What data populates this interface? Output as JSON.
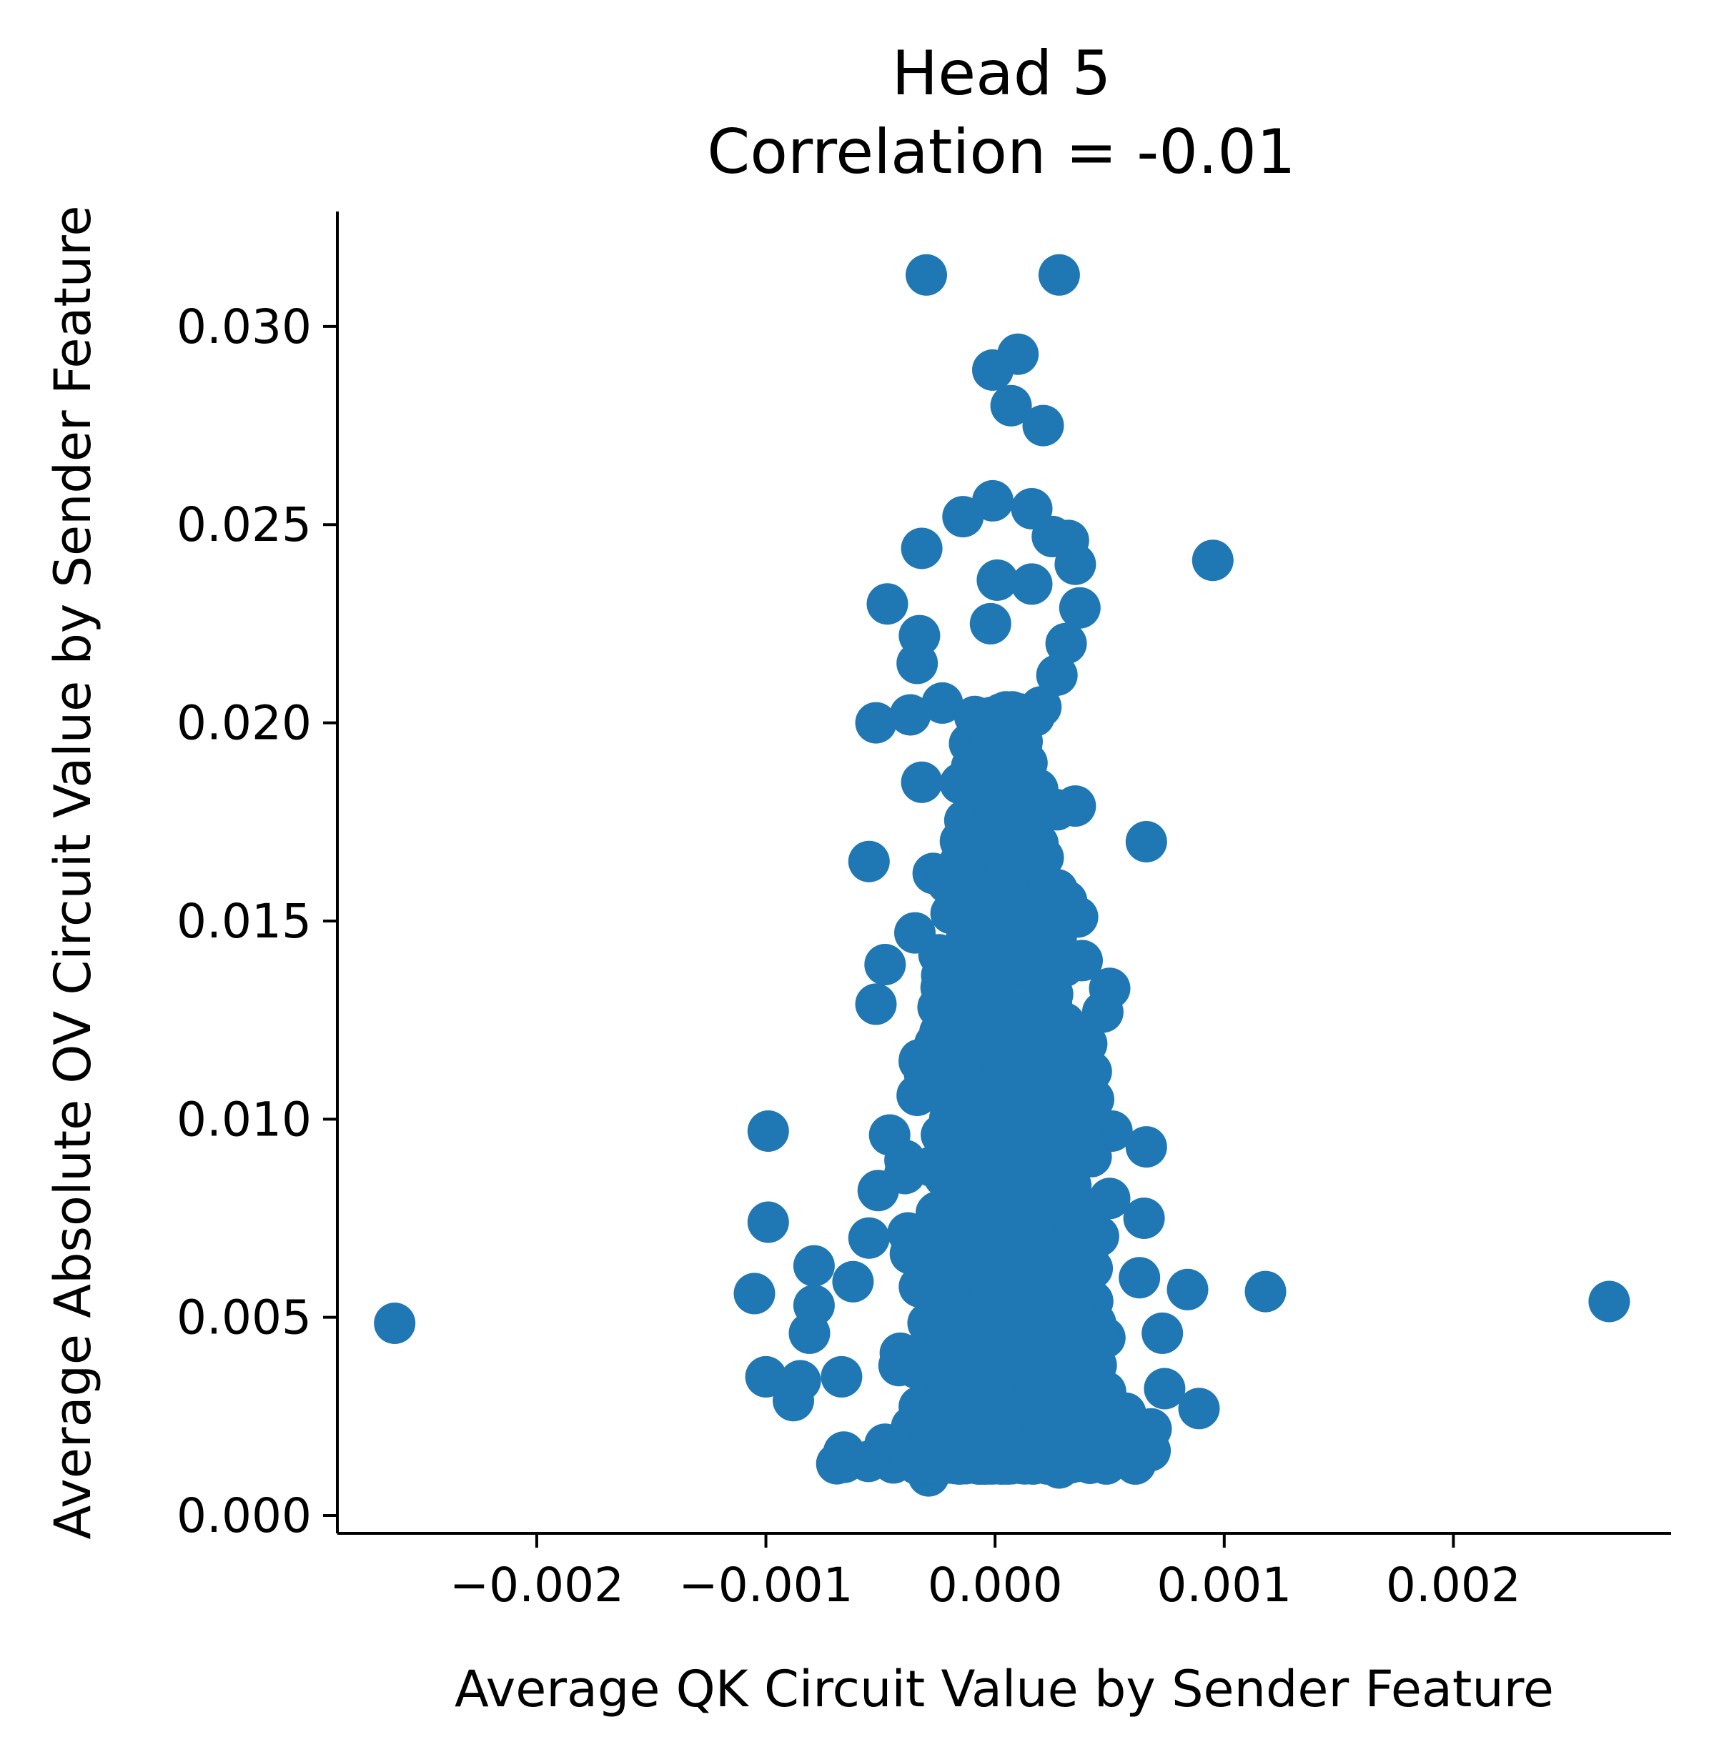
{
  "chart_data": {
    "type": "scatter",
    "title_line1": "Head 5",
    "title_line2": "Correlation = -0.01",
    "xlabel": "Average QK Circuit Value by Sender Feature",
    "ylabel": "Average Absolute OV Circuit Value by Sender Feature",
    "xlim": [
      -0.00287,
      0.00295
    ],
    "ylim": [
      -0.00045,
      0.0329
    ],
    "x_ticks": [
      -0.002,
      -0.001,
      0.0,
      0.001,
      0.002
    ],
    "x_tick_labels": [
      "−0.002",
      "−0.001",
      "0.000",
      "0.001",
      "0.002"
    ],
    "y_ticks": [
      0.0,
      0.005,
      0.01,
      0.015,
      0.02,
      0.025,
      0.03
    ],
    "y_tick_labels": [
      "0.000",
      "0.005",
      "0.010",
      "0.015",
      "0.020",
      "0.025",
      "0.030"
    ],
    "grid": false,
    "legend": "none",
    "point_color": "#1f77b4",
    "points": [
      [
        -0.00262,
        0.00485
      ],
      [
        0.00268,
        0.0054
      ],
      [
        0.00118,
        0.00565
      ],
      [
        0.00095,
        0.0241
      ],
      [
        -0.0003,
        0.0313
      ],
      [
        0.00028,
        0.0313
      ],
      [
        0.0001,
        0.0293
      ],
      [
        -1e-05,
        0.0289
      ],
      [
        7e-05,
        0.028
      ],
      [
        0.00021,
        0.0275
      ],
      [
        -1e-05,
        0.0256
      ],
      [
        0.00016,
        0.0254
      ],
      [
        -0.00014,
        0.0252
      ],
      [
        0.00025,
        0.0247
      ],
      [
        0.00032,
        0.0246
      ],
      [
        -0.00032,
        0.0244
      ],
      [
        0.00035,
        0.024
      ],
      [
        1e-05,
        0.0236
      ],
      [
        0.00016,
        0.0235
      ],
      [
        -0.00047,
        0.023
      ],
      [
        0.00037,
        0.0229
      ],
      [
        -0.00033,
        0.0222
      ],
      [
        -2e-05,
        0.0225
      ],
      [
        0.00031,
        0.022
      ],
      [
        -0.00034,
        0.0215
      ],
      [
        0.00027,
        0.0212
      ],
      [
        -0.00052,
        0.02
      ],
      [
        -0.00037,
        0.0202
      ],
      [
        -0.00023,
        0.0205
      ],
      [
        0.0002,
        0.0204
      ],
      [
        -0.00032,
        0.0185
      ],
      [
        0.00035,
        0.0179
      ],
      [
        0.00066,
        0.017
      ],
      [
        -0.00055,
        0.0165
      ],
      [
        0.00021,
        0.0166
      ],
      [
        -0.00027,
        0.0162
      ],
      [
        0.0003,
        0.0155
      ],
      [
        0.00036,
        0.0151
      ],
      [
        -0.00035,
        0.0147
      ],
      [
        0.00038,
        0.014
      ],
      [
        -0.00048,
        0.0139
      ],
      [
        -0.00052,
        0.0129
      ],
      [
        0.0005,
        0.0133
      ],
      [
        0.00047,
        0.0127
      ],
      [
        0.0004,
        0.0119
      ],
      [
        -0.00033,
        0.0115
      ],
      [
        0.00042,
        0.0112
      ],
      [
        -0.00034,
        0.0106
      ],
      [
        0.00043,
        0.0105
      ],
      [
        -0.00099,
        0.0097
      ],
      [
        -0.00046,
        0.0096
      ],
      [
        0.00051,
        0.0097
      ],
      [
        0.00066,
        0.0093
      ],
      [
        -0.00051,
        0.0082
      ],
      [
        0.0005,
        0.008
      ],
      [
        -0.00099,
        0.0074
      ],
      [
        0.00065,
        0.0075
      ],
      [
        -0.00055,
        0.007
      ],
      [
        -0.00079,
        0.0063
      ],
      [
        -0.00062,
        0.0059
      ],
      [
        0.00063,
        0.006
      ],
      [
        0.00084,
        0.0057
      ],
      [
        -0.00105,
        0.0056
      ],
      [
        -0.00079,
        0.0053
      ],
      [
        0.00073,
        0.0046
      ],
      [
        -0.00081,
        0.0046
      ],
      [
        -0.001,
        0.0035
      ],
      [
        -0.00085,
        0.0034
      ],
      [
        -0.00067,
        0.0035
      ],
      [
        0.00074,
        0.0032
      ],
      [
        -0.00088,
        0.0029
      ],
      [
        0.00089,
        0.0027
      ],
      [
        -0.00066,
        0.0016
      ],
      [
        0.00057,
        0.0016
      ],
      [
        -0.00048,
        0.0018
      ],
      [
        -0.00029,
        0.001
      ],
      [
        0.00028,
        0.0012
      ],
      [
        -7e-05,
        0.0013
      ],
      [
        3e-05,
        0.0013
      ],
      [
        0.00018,
        0.0015
      ],
      [
        0.0005,
        0.0026
      ],
      [
        0.00044,
        0.002
      ]
    ]
  }
}
